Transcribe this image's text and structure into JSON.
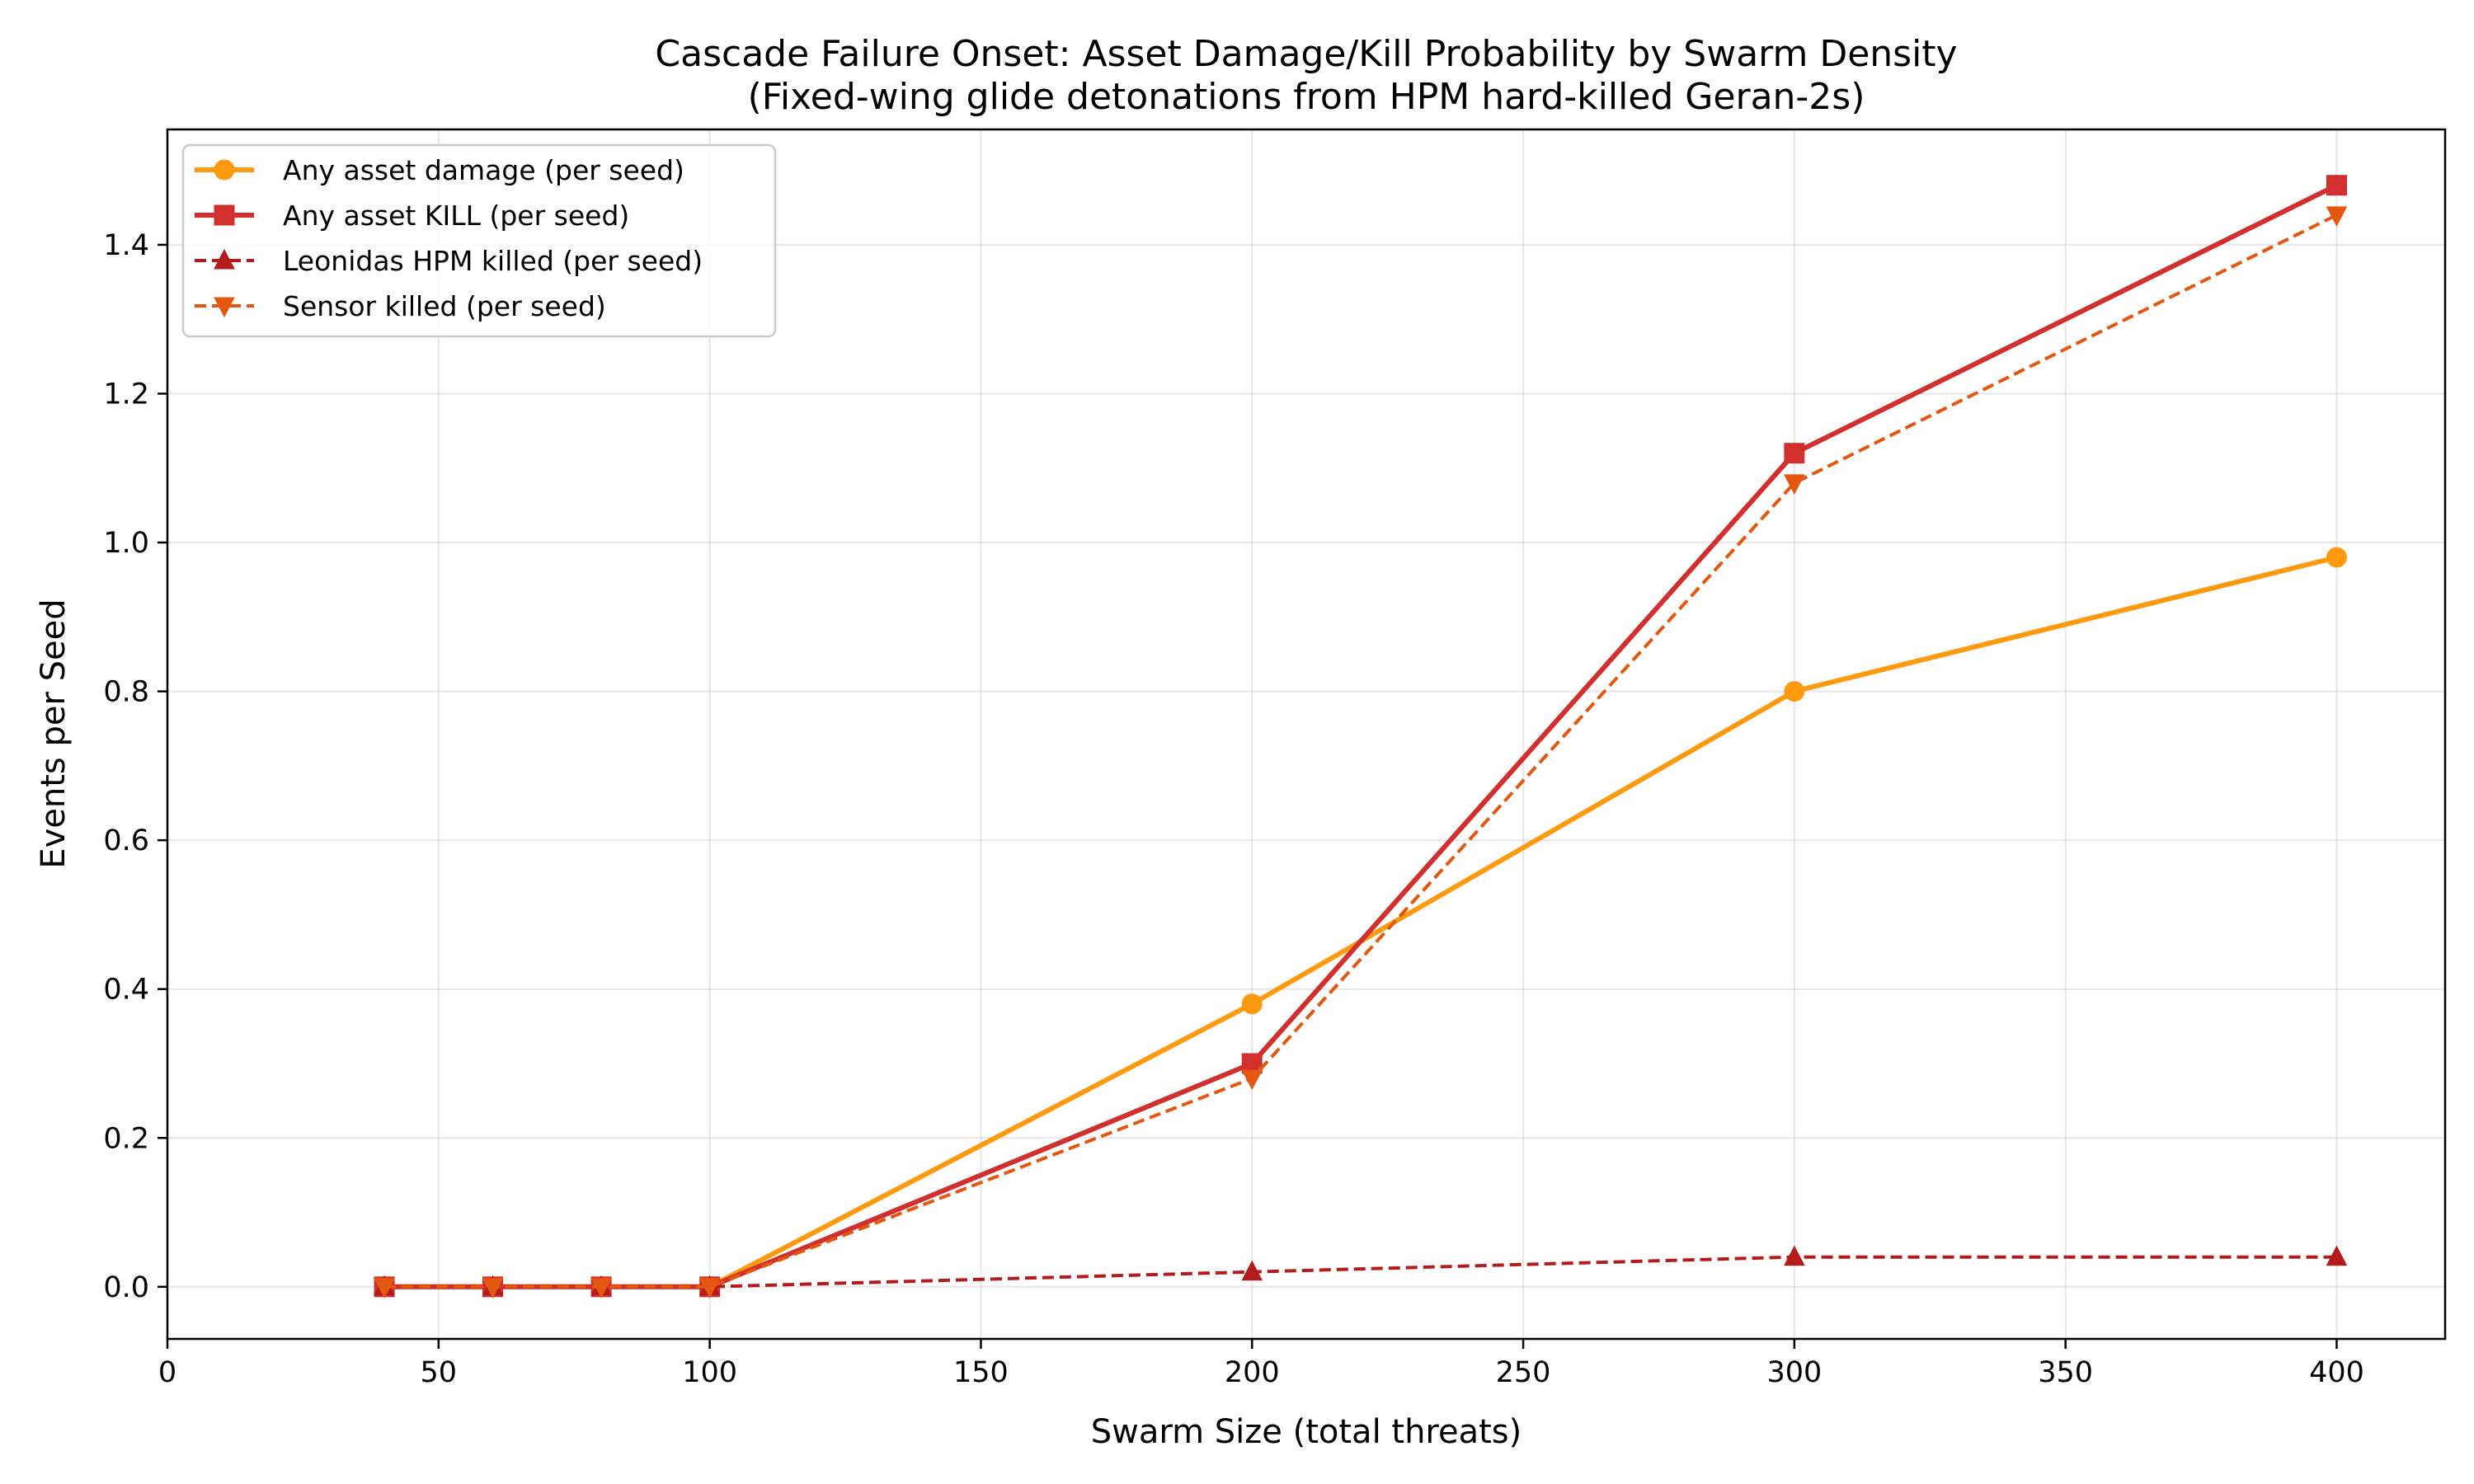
{
  "chart_data": {
    "type": "line",
    "title": "Cascade Failure Onset: Asset Damage/Kill Probability by Swarm Density",
    "subtitle": "(Fixed-wing glide detonations from HPM hard-killed Geran-2s)",
    "xlabel": "Swarm Size (total threats)",
    "ylabel": "Events per Seed",
    "xlim": [
      0,
      420
    ],
    "ylim": [
      -0.07,
      1.555
    ],
    "x_ticks": [
      0,
      50,
      100,
      150,
      200,
      250,
      300,
      350,
      400
    ],
    "y_ticks": [
      0.0,
      0.2,
      0.4,
      0.6,
      0.8,
      1.0,
      1.2,
      1.4
    ],
    "grid": true,
    "legend_position": "top-left",
    "x": [
      40,
      60,
      80,
      100,
      200,
      300,
      400
    ],
    "series": [
      {
        "name": "Any asset damage (per seed)",
        "values": [
          0,
          0,
          0,
          0,
          0.38,
          0.8,
          0.98
        ],
        "color": "#ff9a0e",
        "marker": "circle",
        "line_style": "solid"
      },
      {
        "name": "Any asset KILL (per seed)",
        "values": [
          0,
          0,
          0,
          0,
          0.3,
          1.12,
          1.48
        ],
        "color": "#d22f2f",
        "marker": "square",
        "line_style": "solid"
      },
      {
        "name": "Leonidas HPM killed (per seed)",
        "values": [
          0,
          0,
          0,
          0,
          0.02,
          0.04,
          0.04
        ],
        "color": "#b41c1c",
        "marker": "triangle-up",
        "line_style": "dashed"
      },
      {
        "name": "Sensor killed (per seed)",
        "values": [
          0,
          0,
          0,
          0,
          0.28,
          1.08,
          1.44
        ],
        "color": "#e5560f",
        "marker": "triangle-down",
        "line_style": "dashed"
      }
    ]
  }
}
